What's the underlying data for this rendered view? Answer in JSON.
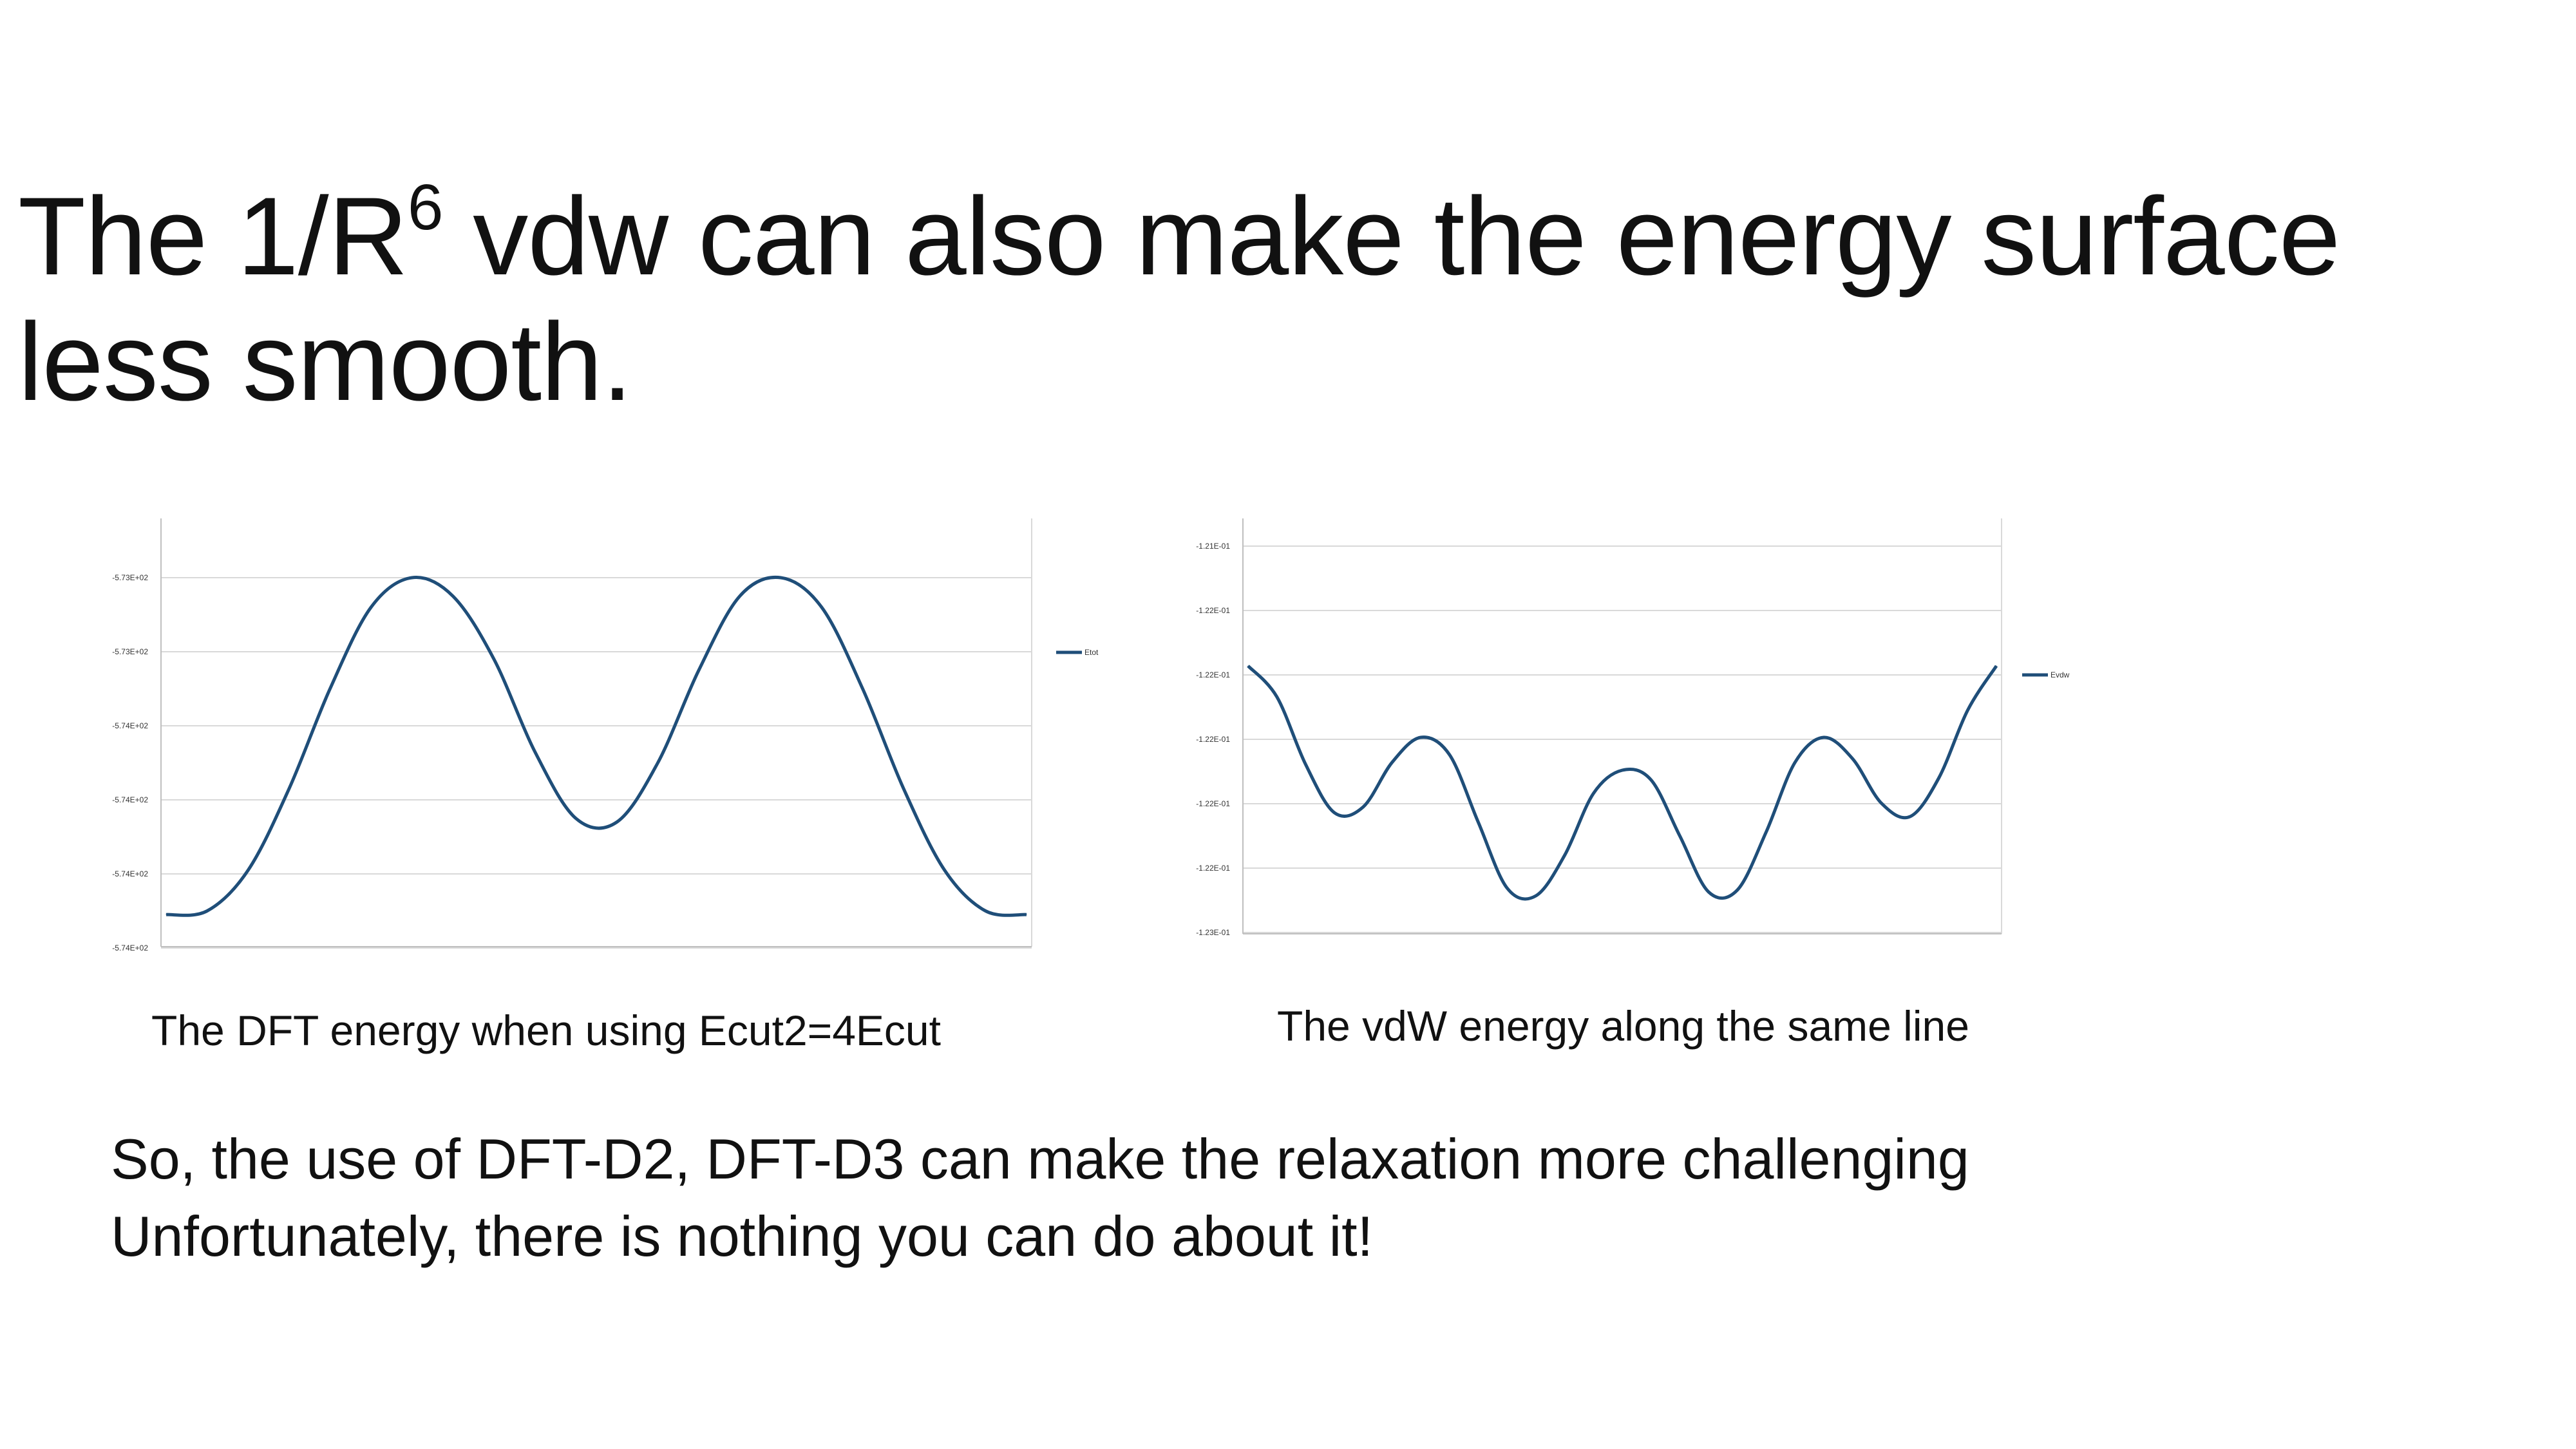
{
  "slide": {
    "title_prefix": "The 1/R",
    "title_sup": "6",
    "title_line1_rest": " vdw can also make the energy surface",
    "title_line2": "less smooth.",
    "caption_left": "The DFT energy when using Ecut2=4Ecut",
    "caption_right": "The vdW energy along the same line",
    "body_line1": "So, the use of DFT-D2, DFT-D3 can make the relaxation more challenging",
    "body_line2": "Unfortunately, there is nothing you can do about it!"
  },
  "colors": {
    "series": "#1f4e79",
    "grid": "#d9d9d9",
    "axis": "#bfbfbf"
  },
  "chart_data": [
    {
      "type": "line",
      "ylim": [
        -5.7405,
        -5.7305
      ],
      "ytick_labels": [
        "-5.74E+02",
        "-5.74E+02",
        "-5.74E+02",
        "-5.74E+02",
        "-5.73E+02",
        "-5.73E+02"
      ],
      "legend_position": "right",
      "grid": true,
      "series": [
        {
          "name": "Etot",
          "color": "#1f4e79",
          "values": [
            -5.7396,
            -5.7395,
            -5.7384,
            -5.7362,
            -5.7335,
            -5.7313,
            -5.7305,
            -5.731,
            -5.7327,
            -5.7352,
            -5.737,
            -5.7371,
            -5.7355,
            -5.733,
            -5.731,
            -5.7305,
            -5.7313,
            -5.7335,
            -5.7362,
            -5.7384,
            -5.7395,
            -5.7396
          ]
        }
      ]
    },
    {
      "type": "line",
      "ylim": [
        -1.23,
        -1.21
      ],
      "ytick_labels": [
        "-1.23E-01",
        "-1.22E-01",
        "-1.22E-01",
        "-1.22E-01",
        "-1.22E-01",
        "-1.22E-01",
        "-1.21E-01"
      ],
      "legend_position": "right",
      "grid": true,
      "series": [
        {
          "name": "Evdw",
          "color": "#1f4e79",
          "values": [
            -1.2162,
            -1.2178,
            -1.2213,
            -1.2238,
            -1.2235,
            -1.2212,
            -1.2199,
            -1.2208,
            -1.2243,
            -1.2277,
            -1.2281,
            -1.226,
            -1.2228,
            -1.2216,
            -1.2221,
            -1.225,
            -1.2279,
            -1.2278,
            -1.2248,
            -1.2212,
            -1.2199,
            -1.221,
            -1.2233,
            -1.224,
            -1.222,
            -1.2185,
            -1.2162
          ]
        }
      ]
    }
  ]
}
